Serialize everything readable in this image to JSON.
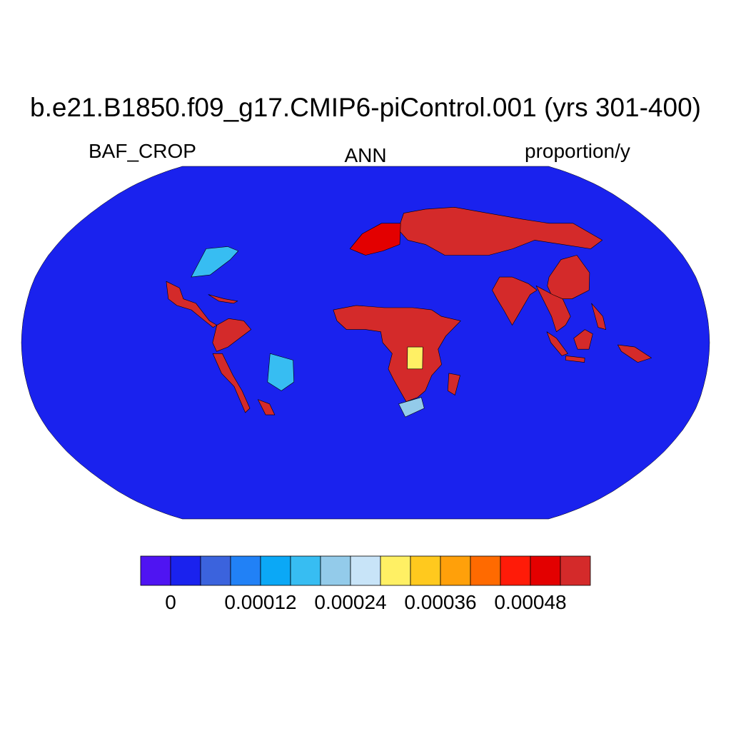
{
  "title": "b.e21.B1850.f09_g17.CMIP6-piControl.001 (yrs 301-400)",
  "subtitle_left": "BAF_CROP",
  "subtitle_center": "ANN",
  "subtitle_right": "proportion/y",
  "background_color": "#1a22ee",
  "coastline_color": "#000000",
  "colorbar": {
    "colors": [
      "#4f14f2",
      "#1a22ee",
      "#3b63dd",
      "#2181f6",
      "#0ba8f6",
      "#37bdf2",
      "#93cbea",
      "#c8e4f8",
      "#fff064",
      "#ffc91e",
      "#ffa00a",
      "#ff6a00",
      "#ff1b08",
      "#e30000",
      "#d42a2a"
    ],
    "labels": [
      {
        "text": "0",
        "boundary": 1
      },
      {
        "text": "0.00012",
        "boundary": 4
      },
      {
        "text": "0.00024",
        "boundary": 7
      },
      {
        "text": "0.00036",
        "boundary": 10
      },
      {
        "text": "0.00048",
        "boundary": 13
      }
    ]
  },
  "regions": [
    {
      "name": "sahel-africa",
      "level": 14,
      "points": [
        [
          -17,
          15
        ],
        [
          -5,
          17
        ],
        [
          10,
          16
        ],
        [
          25,
          16
        ],
        [
          35,
          15
        ],
        [
          40,
          12
        ],
        [
          50,
          10
        ],
        [
          42,
          3
        ],
        [
          38,
          -3
        ],
        [
          40,
          -10
        ],
        [
          35,
          -15
        ],
        [
          32,
          -22
        ],
        [
          28,
          -25
        ],
        [
          22,
          -27
        ],
        [
          15,
          -17
        ],
        [
          12,
          -12
        ],
        [
          14,
          -5
        ],
        [
          9,
          0
        ],
        [
          8,
          5
        ],
        [
          0,
          6
        ],
        [
          -10,
          6
        ],
        [
          -15,
          10
        ]
      ]
    },
    {
      "name": "madagascar",
      "level": 14,
      "points": [
        [
          44,
          -14
        ],
        [
          50,
          -15
        ],
        [
          48,
          -24
        ],
        [
          44,
          -22
        ]
      ]
    },
    {
      "name": "eurasia-north",
      "level": 14,
      "points": [
        [
          25,
          60
        ],
        [
          40,
          62
        ],
        [
          60,
          63
        ],
        [
          80,
          60
        ],
        [
          100,
          57
        ],
        [
          115,
          55
        ],
        [
          130,
          55
        ],
        [
          140,
          47
        ],
        [
          130,
          43
        ],
        [
          115,
          45
        ],
        [
          100,
          47
        ],
        [
          85,
          43
        ],
        [
          70,
          40
        ],
        [
          55,
          40
        ],
        [
          45,
          40
        ],
        [
          35,
          45
        ],
        [
          25,
          47
        ],
        [
          20,
          52
        ]
      ]
    },
    {
      "name": "india",
      "level": 14,
      "points": [
        [
          68,
          24
        ],
        [
          73,
          30
        ],
        [
          80,
          30
        ],
        [
          88,
          27
        ],
        [
          92,
          24
        ],
        [
          88,
          22
        ],
        [
          80,
          12
        ],
        [
          77,
          8
        ],
        [
          73,
          15
        ],
        [
          70,
          20
        ]
      ]
    },
    {
      "name": "china",
      "level": 14,
      "points": [
        [
          100,
          30
        ],
        [
          110,
          38
        ],
        [
          120,
          40
        ],
        [
          123,
          32
        ],
        [
          120,
          24
        ],
        [
          110,
          20
        ],
        [
          100,
          20
        ],
        [
          98,
          26
        ]
      ]
    },
    {
      "name": "indochina",
      "level": 14,
      "points": [
        [
          92,
          26
        ],
        [
          100,
          22
        ],
        [
          105,
          20
        ],
        [
          108,
          12
        ],
        [
          105,
          8
        ],
        [
          100,
          5
        ],
        [
          98,
          12
        ]
      ]
    },
    {
      "name": "sumatra",
      "level": 14,
      "points": [
        [
          95,
          5
        ],
        [
          100,
          2
        ],
        [
          106,
          -5
        ],
        [
          103,
          -6
        ],
        [
          97,
          0
        ]
      ]
    },
    {
      "name": "borneo",
      "level": 14,
      "points": [
        [
          109,
          2
        ],
        [
          115,
          6
        ],
        [
          119,
          4
        ],
        [
          117,
          -3
        ],
        [
          111,
          -3
        ]
      ]
    },
    {
      "name": "java",
      "level": 14,
      "points": [
        [
          105,
          -6
        ],
        [
          115,
          -7
        ],
        [
          115,
          -9
        ],
        [
          105,
          -8
        ]
      ]
    },
    {
      "name": "philippines",
      "level": 14,
      "points": [
        [
          120,
          18
        ],
        [
          125,
          12
        ],
        [
          126,
          6
        ],
        [
          122,
          7
        ]
      ]
    },
    {
      "name": "new-guinea",
      "level": 14,
      "points": [
        [
          132,
          -1
        ],
        [
          141,
          -2
        ],
        [
          150,
          -7
        ],
        [
          143,
          -9
        ],
        [
          134,
          -4
        ]
      ]
    },
    {
      "name": "mexico-central-america",
      "level": 14,
      "points": [
        [
          -108,
          28
        ],
        [
          -100,
          25
        ],
        [
          -97,
          20
        ],
        [
          -90,
          18
        ],
        [
          -86,
          14
        ],
        [
          -82,
          10
        ],
        [
          -78,
          8
        ],
        [
          -80,
          7
        ],
        [
          -86,
          11
        ],
        [
          -92,
          15
        ],
        [
          -100,
          17
        ],
        [
          -105,
          20
        ]
      ]
    },
    {
      "name": "caribbean",
      "level": 14,
      "points": [
        [
          -84,
          22
        ],
        [
          -75,
          20
        ],
        [
          -68,
          19
        ],
        [
          -70,
          18
        ],
        [
          -78,
          19
        ],
        [
          -82,
          21
        ]
      ]
    },
    {
      "name": "andes-north",
      "level": 14,
      "points": [
        [
          -78,
          8
        ],
        [
          -72,
          11
        ],
        [
          -64,
          10
        ],
        [
          -60,
          6
        ],
        [
          -66,
          2
        ],
        [
          -72,
          -2
        ],
        [
          -78,
          -4
        ],
        [
          -80,
          0
        ]
      ]
    },
    {
      "name": "andes-south",
      "level": 14,
      "points": [
        [
          -80,
          -5
        ],
        [
          -75,
          -5
        ],
        [
          -70,
          -15
        ],
        [
          -66,
          -22
        ],
        [
          -63,
          -30
        ],
        [
          -66,
          -32
        ],
        [
          -70,
          -20
        ],
        [
          -76,
          -14
        ]
      ]
    },
    {
      "name": "south-brazil",
      "level": 14,
      "points": [
        [
          -58,
          -26
        ],
        [
          -52,
          -28
        ],
        [
          -50,
          -33
        ],
        [
          -55,
          -33
        ]
      ]
    },
    {
      "name": "west-europe",
      "level": 13,
      "points": [
        [
          -9,
          43
        ],
        [
          -2,
          50
        ],
        [
          10,
          55
        ],
        [
          22,
          55
        ],
        [
          20,
          45
        ],
        [
          10,
          42
        ],
        [
          0,
          40
        ]
      ]
    },
    {
      "name": "east-us",
      "level": 5,
      "points": [
        [
          -95,
          30
        ],
        [
          -85,
          31
        ],
        [
          -76,
          38
        ],
        [
          -73,
          42
        ],
        [
          -80,
          44
        ],
        [
          -92,
          43
        ]
      ]
    },
    {
      "name": "southeast-brazil",
      "level": 5,
      "points": [
        [
          -50,
          -5
        ],
        [
          -38,
          -8
        ],
        [
          -38,
          -18
        ],
        [
          -45,
          -22
        ],
        [
          -52,
          -18
        ]
      ]
    },
    {
      "name": "congo-east",
      "level": 8,
      "points": [
        [
          22,
          -2
        ],
        [
          30,
          -2
        ],
        [
          30,
          -12
        ],
        [
          22,
          -12
        ]
      ]
    },
    {
      "name": "south-africa",
      "level": 6,
      "points": [
        [
          18,
          -28
        ],
        [
          30,
          -25
        ],
        [
          32,
          -30
        ],
        [
          22,
          -34
        ]
      ]
    }
  ]
}
